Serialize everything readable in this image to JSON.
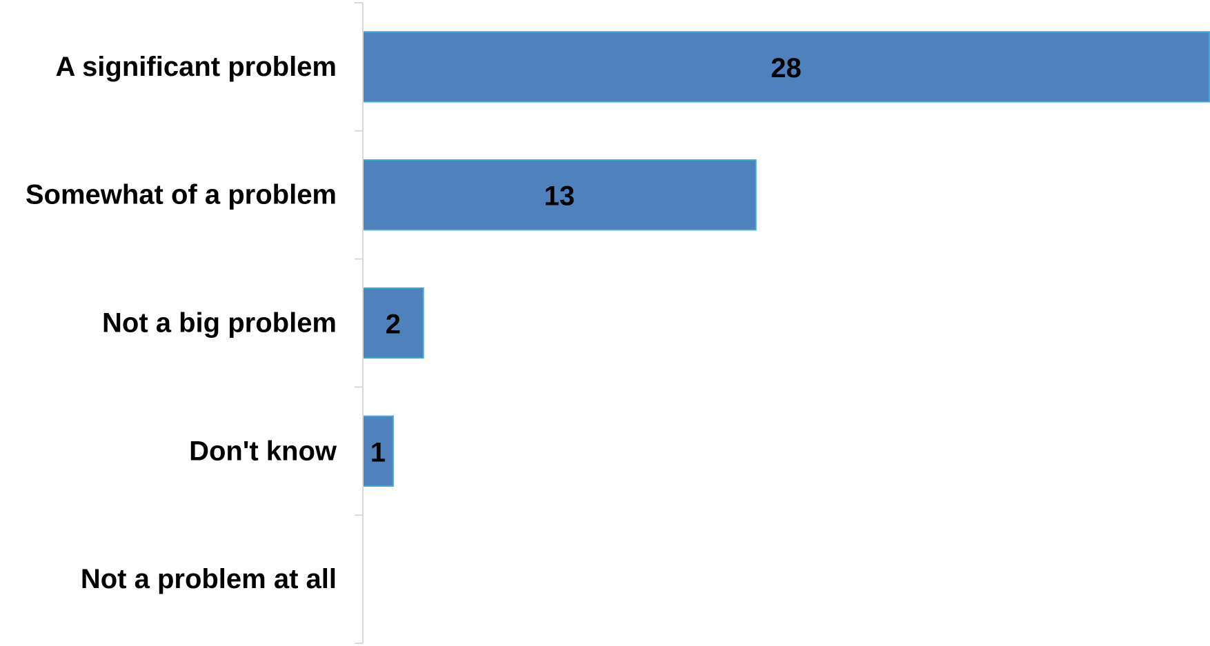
{
  "chart_data": {
    "type": "bar",
    "orientation": "horizontal",
    "categories": [
      "A significant problem",
      "Somewhat of a problem",
      "Not a big problem",
      "Don't know",
      "Not a problem at all"
    ],
    "values": [
      28,
      13,
      2,
      1,
      0
    ],
    "data_labels": [
      "28",
      "13",
      "2",
      "1",
      ""
    ],
    "title": "",
    "xlabel": "",
    "ylabel": "",
    "xlim": [
      0,
      28
    ],
    "grid": false,
    "legend": "none",
    "bar_color": "#4f81bd",
    "bar_edge_color": "#3fa9dc",
    "axis_color": "#d9d9d9"
  }
}
